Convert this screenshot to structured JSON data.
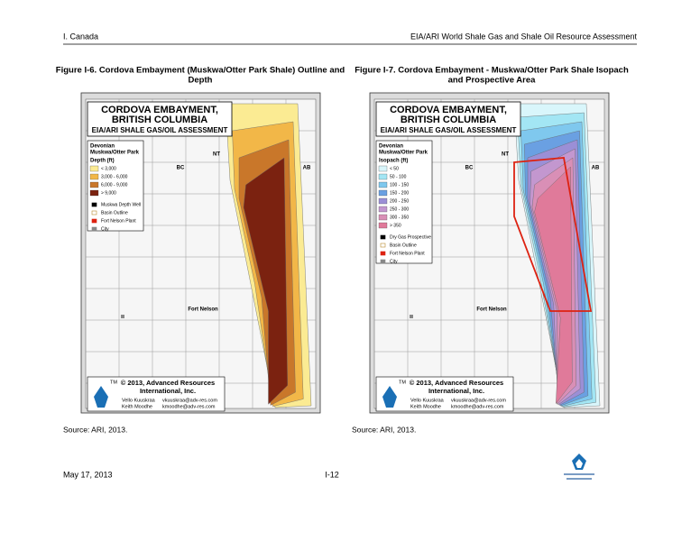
{
  "header": {
    "left": "I. Canada",
    "right": "EIA/ARI World Shale Gas and Shale Oil Resource Assessment"
  },
  "footer": {
    "date": "May 17, 2013",
    "page": "I-12"
  },
  "figures": [
    {
      "caption": [
        "Figure I-6.  Cordova Embayment (Muskwa/Otter Park Shale) Outline and",
        "Depth"
      ],
      "source": "Source: ARI, 2013.",
      "map": {
        "title": [
          "CORDOVA EMBAYMENT,",
          "BRITISH COLUMBIA"
        ],
        "subtitle": "EIA/ARI SHALE GAS/OIL ASSESSMENT",
        "legend_title": [
          "Devonian",
          "Muskwa/Otter Park"
        ],
        "legend_heading": "Depth (ft)",
        "legend": [
          {
            "label": "< 3,000",
            "color": "#fbeb93"
          },
          {
            "label": "3,000 - 6,000",
            "color": "#f2b748"
          },
          {
            "label": "6,000 - 9,000",
            "color": "#c9772a"
          },
          {
            "label": "> 9,000",
            "color": "#7b2210"
          }
        ],
        "symbols": [
          "Muskwa Depth Well",
          "Basin Outline",
          "Fort Nelson Plant",
          "City"
        ],
        "places": [
          "NT",
          "BC",
          "AB",
          "Fort Nelson"
        ],
        "credit": [
          "© 2013, Advanced Resources",
          "International, Inc.",
          "Vello Kuuskraa",
          "vkuuskraa@adv-res.com",
          "Keith Moodhe",
          "kmoodhe@adv-res.com",
          "TM"
        ]
      }
    },
    {
      "caption": [
        "Figure I-7.  Cordova Embayment - Muskwa/Otter Park Shale Isopach",
        "and  Prospective Area"
      ],
      "source": "Source: ARI, 2013.",
      "map": {
        "title": [
          "CORDOVA EMBAYMENT,",
          "BRITISH COLUMBIA"
        ],
        "subtitle": "EIA/ARI SHALE GAS/OIL ASSESSMENT",
        "legend_title": [
          "Devonian",
          "Muskwa/Otter Park"
        ],
        "legend_heading": "Isopach (ft)",
        "legend": [
          {
            "label": "< 50",
            "color": "#d9f6fb"
          },
          {
            "label": "50 - 100",
            "color": "#a3e6f4"
          },
          {
            "label": "100 - 150",
            "color": "#7fc8ee"
          },
          {
            "label": "150 - 200",
            "color": "#6aa0e2"
          },
          {
            "label": "200 - 250",
            "color": "#9b8fd6"
          },
          {
            "label": "250 - 300",
            "color": "#c397cf"
          },
          {
            "label": "300 - 350",
            "color": "#d98fb6"
          },
          {
            "label": "> 350",
            "color": "#e07a9a"
          }
        ],
        "symbols": [
          "Dry Gas Prospective",
          "Basin Outline",
          "Fort Nelson Plant",
          "City"
        ],
        "places": [
          "NT",
          "BC",
          "AB",
          "Fort Nelson"
        ],
        "credit": [
          "© 2013, Advanced Resources",
          "International, Inc.",
          "Vello Kuuskraa",
          "vkuuskraa@adv-res.com",
          "Keith Moodhe",
          "kmoodhe@adv-res.com",
          "TM"
        ]
      }
    }
  ]
}
